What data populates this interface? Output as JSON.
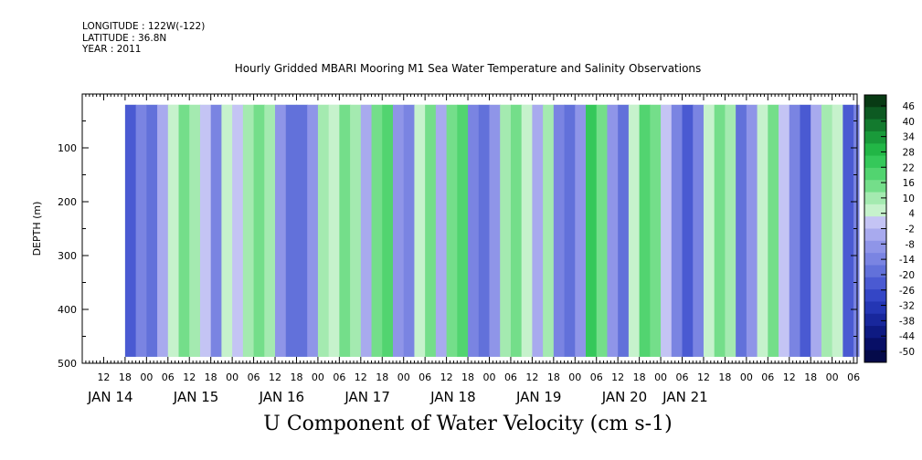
{
  "header": {
    "longitude": "LONGITUDE : 122W(-122)",
    "latitude": "LATITUDE : 36.8N",
    "year": "YEAR : 2011"
  },
  "chart_data": {
    "type": "heatmap",
    "title": "Hourly Gridded MBARI Mooring M1 Sea Water Temperature and Salinity Observations",
    "xlabel": "U Component of Water Velocity (cm s-1)",
    "ylabel": "DEPTH (m)",
    "y_axis": {
      "range": [
        0,
        500
      ],
      "inverted": true,
      "ticks": [
        100,
        200,
        300,
        400,
        500
      ]
    },
    "x_axis": {
      "range_hours_from_jan14_00": [
        6,
        223
      ],
      "hour_ticks": [
        {
          "h": 12,
          "label": "12"
        },
        {
          "h": 18,
          "label": "18"
        },
        {
          "h": 24,
          "label": "00"
        },
        {
          "h": 30,
          "label": "06"
        },
        {
          "h": 36,
          "label": "12"
        },
        {
          "h": 42,
          "label": "18"
        },
        {
          "h": 48,
          "label": "00"
        },
        {
          "h": 54,
          "label": "06"
        },
        {
          "h": 60,
          "label": "12"
        },
        {
          "h": 66,
          "label": "18"
        },
        {
          "h": 72,
          "label": "00"
        },
        {
          "h": 78,
          "label": "06"
        },
        {
          "h": 84,
          "label": "12"
        },
        {
          "h": 90,
          "label": "18"
        },
        {
          "h": 96,
          "label": "00"
        },
        {
          "h": 102,
          "label": "06"
        },
        {
          "h": 108,
          "label": "12"
        },
        {
          "h": 114,
          "label": "18"
        },
        {
          "h": 120,
          "label": "00"
        },
        {
          "h": 126,
          "label": "06"
        },
        {
          "h": 132,
          "label": "12"
        },
        {
          "h": 138,
          "label": "18"
        },
        {
          "h": 144,
          "label": "00"
        },
        {
          "h": 150,
          "label": "06"
        },
        {
          "h": 156,
          "label": "12"
        },
        {
          "h": 162,
          "label": "18"
        },
        {
          "h": 168,
          "label": "00"
        },
        {
          "h": 174,
          "label": "06"
        },
        {
          "h": 180,
          "label": "12"
        },
        {
          "h": 186,
          "label": "18"
        },
        {
          "h": 192,
          "label": "00"
        },
        {
          "h": 198,
          "label": "06"
        },
        {
          "h": 204,
          "label": "12"
        },
        {
          "h": 210,
          "label": "18"
        },
        {
          "h": 216,
          "label": "00"
        },
        {
          "h": 222,
          "label": "06"
        }
      ],
      "day_labels": [
        {
          "h": 6,
          "label": "JAN 14"
        },
        {
          "h": 30,
          "label": "JAN 15"
        },
        {
          "h": 54,
          "label": "JAN 16"
        },
        {
          "h": 78,
          "label": "JAN 17"
        },
        {
          "h": 102,
          "label": "JAN 18"
        },
        {
          "h": 126,
          "label": "JAN 19"
        },
        {
          "h": 150,
          "label": "JAN 20"
        },
        {
          "h": 167,
          "label": "JAN 21"
        }
      ]
    },
    "data_extent": {
      "start_hour": 18,
      "end_hour": 222,
      "depth_min": 20,
      "depth_max": 488
    },
    "columns_u_cm_s": [
      {
        "h": 18,
        "u": -20
      },
      {
        "h": 21,
        "u": -10
      },
      {
        "h": 24,
        "u": -18
      },
      {
        "h": 27,
        "u": -4
      },
      {
        "h": 30,
        "u": 6
      },
      {
        "h": 33,
        "u": 14
      },
      {
        "h": 36,
        "u": 10
      },
      {
        "h": 39,
        "u": 2
      },
      {
        "h": 42,
        "u": -12
      },
      {
        "h": 45,
        "u": 8
      },
      {
        "h": 48,
        "u": 4
      },
      {
        "h": 51,
        "u": 12
      },
      {
        "h": 54,
        "u": 16
      },
      {
        "h": 57,
        "u": 10
      },
      {
        "h": 60,
        "u": -6
      },
      {
        "h": 63,
        "u": -14
      },
      {
        "h": 66,
        "u": -18
      },
      {
        "h": 69,
        "u": -8
      },
      {
        "h": 72,
        "u": 12
      },
      {
        "h": 75,
        "u": 6
      },
      {
        "h": 78,
        "u": 18
      },
      {
        "h": 81,
        "u": 10
      },
      {
        "h": 84,
        "u": -4
      },
      {
        "h": 87,
        "u": 14
      },
      {
        "h": 90,
        "u": 22
      },
      {
        "h": 93,
        "u": -6
      },
      {
        "h": 96,
        "u": -12
      },
      {
        "h": 99,
        "u": 8
      },
      {
        "h": 102,
        "u": 18
      },
      {
        "h": 105,
        "u": -2
      },
      {
        "h": 108,
        "u": 14
      },
      {
        "h": 111,
        "u": 20
      },
      {
        "h": 114,
        "u": -10
      },
      {
        "h": 117,
        "u": -16
      },
      {
        "h": 120,
        "u": -6
      },
      {
        "h": 123,
        "u": 12
      },
      {
        "h": 126,
        "u": 16
      },
      {
        "h": 129,
        "u": 6
      },
      {
        "h": 132,
        "u": -4
      },
      {
        "h": 135,
        "u": 10
      },
      {
        "h": 138,
        "u": -12
      },
      {
        "h": 141,
        "u": -18
      },
      {
        "h": 144,
        "u": -8
      },
      {
        "h": 147,
        "u": 26
      },
      {
        "h": 150,
        "u": 16
      },
      {
        "h": 153,
        "u": -6
      },
      {
        "h": 156,
        "u": -14
      },
      {
        "h": 159,
        "u": 8
      },
      {
        "h": 162,
        "u": 20
      },
      {
        "h": 165,
        "u": 14
      },
      {
        "h": 168,
        "u": 4
      },
      {
        "h": 171,
        "u": -10
      },
      {
        "h": 174,
        "u": -20
      },
      {
        "h": 177,
        "u": -12
      },
      {
        "h": 180,
        "u": 6
      },
      {
        "h": 183,
        "u": 18
      },
      {
        "h": 186,
        "u": 10
      },
      {
        "h": 189,
        "u": -14
      },
      {
        "h": 192,
        "u": -8
      },
      {
        "h": 195,
        "u": 8
      },
      {
        "h": 198,
        "u": 14
      },
      {
        "h": 201,
        "u": 4
      },
      {
        "h": 204,
        "u": -12
      },
      {
        "h": 207,
        "u": -20
      },
      {
        "h": 210,
        "u": -4
      },
      {
        "h": 213,
        "u": 12
      },
      {
        "h": 216,
        "u": 6
      },
      {
        "h": 219,
        "u": -22
      },
      {
        "h": 222,
        "u": -10
      }
    ],
    "colorbar": {
      "levels": [
        "46",
        "40",
        "34",
        "28",
        "22",
        "16",
        "10",
        "4",
        "-2",
        "-8",
        "-14",
        "-20",
        "-26",
        "-32",
        "-38",
        "-44",
        "-50"
      ],
      "range": [
        -50,
        50
      ],
      "colors": [
        "#083a14",
        "#0d5a22",
        "#137a2e",
        "#199a3a",
        "#22b646",
        "#35c85a",
        "#52d470",
        "#74de8a",
        "#a4eab0",
        "#c6f2cc",
        "#c4c4f4",
        "#a8aaee",
        "#8f95e8",
        "#7a84e2",
        "#6271da",
        "#4a5ad2",
        "#3446c6",
        "#2436b4",
        "#18279c",
        "#0e1a82",
        "#080f66",
        "#050a4a"
      ]
    }
  }
}
